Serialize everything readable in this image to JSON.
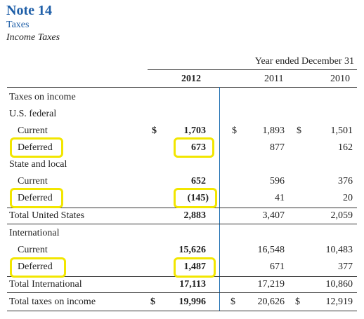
{
  "note": {
    "title": "Note 14",
    "subtitle": "Taxes",
    "section": "Income Taxes"
  },
  "table": {
    "period_header": "Year ended December 31",
    "years": [
      "2012",
      "2011",
      "2010"
    ],
    "currency_symbol": "$",
    "rows": [
      {
        "label": "Taxes on income",
        "values": null
      },
      {
        "label": "U.S. federal",
        "values": null
      },
      {
        "label": "Current",
        "values": [
          "1,703",
          "1,893",
          "1,501"
        ]
      },
      {
        "label": "Deferred",
        "values": [
          "673",
          "877",
          "162"
        ]
      },
      {
        "label": "State and local",
        "values": null
      },
      {
        "label": "Current",
        "values": [
          "652",
          "596",
          "376"
        ]
      },
      {
        "label": "Deferred",
        "values": [
          "(145)",
          "41",
          "20"
        ]
      },
      {
        "label": "Total United States",
        "values": [
          "2,883",
          "3,407",
          "2,059"
        ]
      },
      {
        "label": "International",
        "values": null
      },
      {
        "label": "Current",
        "values": [
          "15,626",
          "16,548",
          "10,483"
        ]
      },
      {
        "label": "Deferred",
        "values": [
          "1,487",
          "671",
          "377"
        ]
      },
      {
        "label": "Total International",
        "values": [
          "17,113",
          "17,219",
          "10,860"
        ]
      },
      {
        "label": "Total taxes on income",
        "values": [
          "19,996",
          "20,626",
          "12,919"
        ]
      }
    ]
  },
  "colors": {
    "heading_blue": "#1f5fa8",
    "highlight_yellow": "#f2e600",
    "divider_blue": "#1f6fb2"
  }
}
